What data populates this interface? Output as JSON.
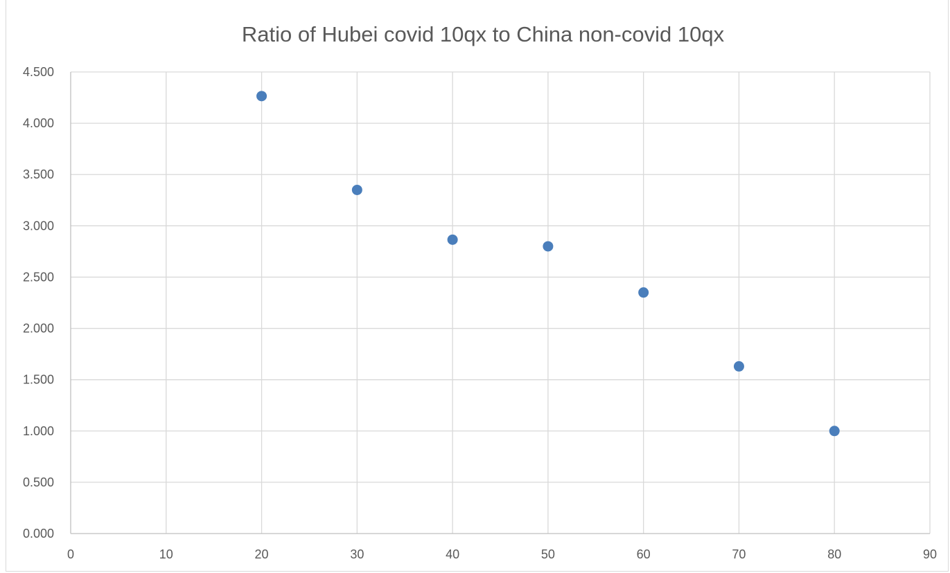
{
  "chart_data": {
    "type": "scatter",
    "title": "Ratio of Hubei covid 10qx to China non-covid 10qx",
    "xlabel": "",
    "ylabel": "",
    "xlim": [
      0,
      90
    ],
    "ylim": [
      0,
      4.5
    ],
    "x_ticks": [
      "0",
      "10",
      "20",
      "30",
      "40",
      "50",
      "60",
      "70",
      "80",
      "90"
    ],
    "y_ticks": [
      "0.000",
      "0.500",
      "1.000",
      "1.500",
      "2.000",
      "2.500",
      "3.000",
      "3.500",
      "4.000",
      "4.500"
    ],
    "grid": true,
    "legend": "none",
    "series": [
      {
        "color": "#4a7ebb",
        "points": [
          {
            "x": 20,
            "y": 4.265
          },
          {
            "x": 30,
            "y": 3.35
          },
          {
            "x": 40,
            "y": 2.865
          },
          {
            "x": 50,
            "y": 2.8
          },
          {
            "x": 60,
            "y": 2.35
          },
          {
            "x": 70,
            "y": 1.63
          },
          {
            "x": 80,
            "y": 1.0
          }
        ]
      }
    ]
  }
}
